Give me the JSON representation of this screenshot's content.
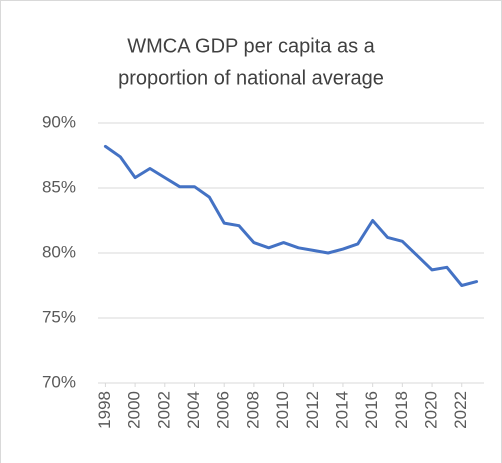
{
  "chart_data": {
    "type": "line",
    "title": [
      "WMCA GDP per capita as a",
      "proportion of national average"
    ],
    "x": [
      1998,
      1999,
      2000,
      2001,
      2002,
      2003,
      2004,
      2005,
      2006,
      2007,
      2008,
      2009,
      2010,
      2011,
      2012,
      2013,
      2014,
      2015,
      2016,
      2017,
      2018,
      2019,
      2020,
      2021,
      2022,
      2023
    ],
    "series": [
      {
        "name": "WMCA",
        "color": "#4472c4",
        "values": [
          88.2,
          87.4,
          85.8,
          86.5,
          85.8,
          85.1,
          85.1,
          84.3,
          82.3,
          82.1,
          80.8,
          80.4,
          80.8,
          80.4,
          80.2,
          80.0,
          80.3,
          80.7,
          82.5,
          81.2,
          80.9,
          79.8,
          78.7,
          78.9,
          77.5,
          77.8
        ]
      }
    ],
    "xlim": [
      1997.5,
      2023.5
    ],
    "xticks": [
      1998,
      2000,
      2002,
      2004,
      2006,
      2008,
      2010,
      2012,
      2014,
      2016,
      2018,
      2020,
      2022
    ],
    "ylim": [
      70,
      90
    ],
    "yticks": [
      {
        "value": 70,
        "label": "70%"
      },
      {
        "value": 75,
        "label": "75%"
      },
      {
        "value": 80,
        "label": "80%"
      },
      {
        "value": 85,
        "label": "85%"
      },
      {
        "value": 90,
        "label": "90%"
      }
    ],
    "grid": true
  }
}
